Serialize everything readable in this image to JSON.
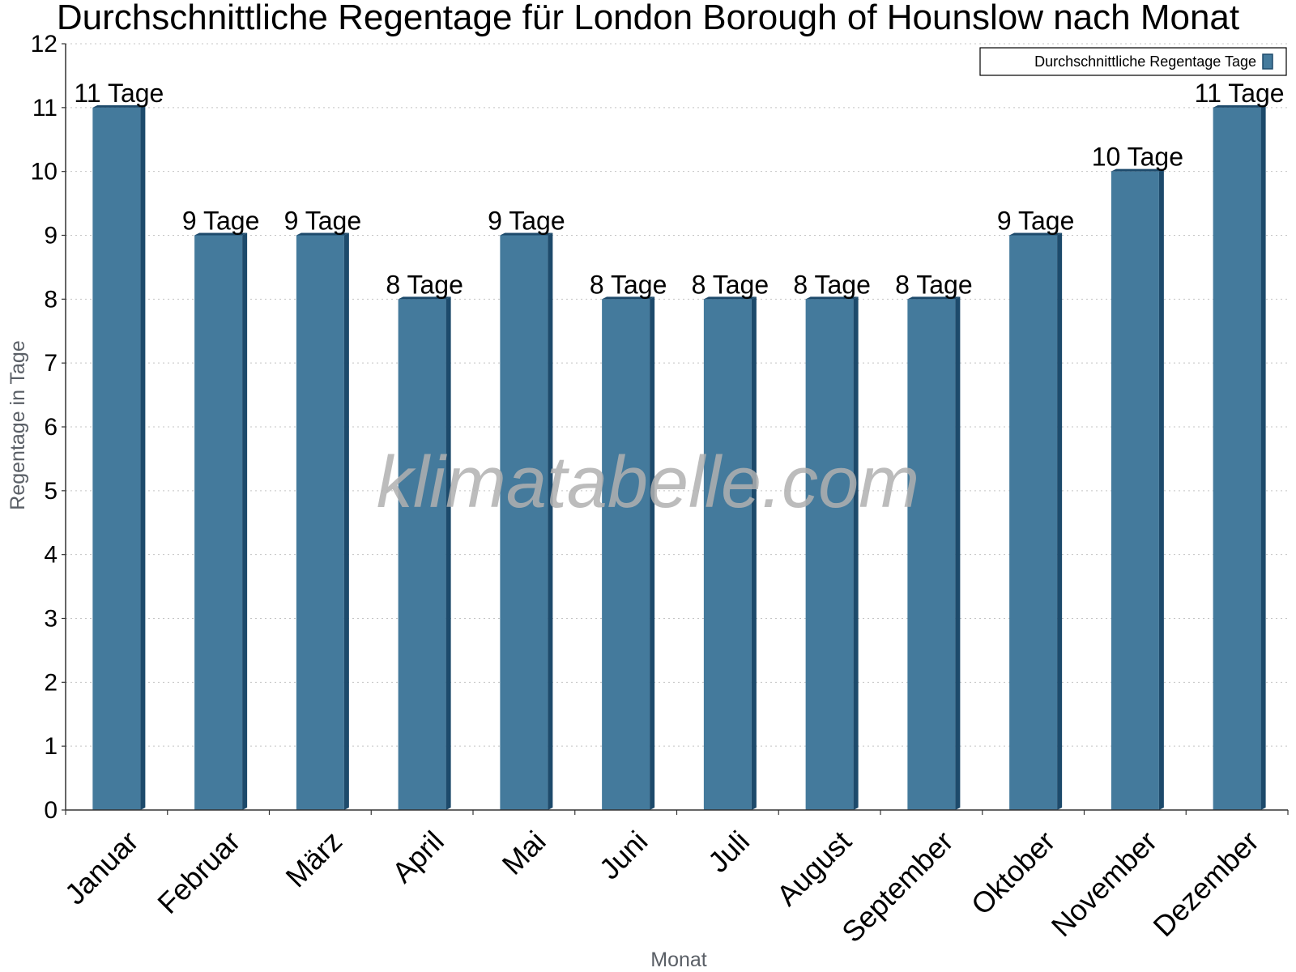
{
  "chart_data": {
    "type": "bar",
    "title": "Durchschnittliche Regentage für London Borough of Hounslow nach Monat",
    "xlabel": "Monat",
    "ylabel": "Regentage in Tage",
    "ylim": [
      0,
      12
    ],
    "yticks": [
      0,
      1,
      2,
      3,
      4,
      5,
      6,
      7,
      8,
      9,
      10,
      11,
      12
    ],
    "grid": true,
    "legend_position": "top-right",
    "categories": [
      "Januar",
      "Februar",
      "März",
      "April",
      "Mai",
      "Juni",
      "Juli",
      "August",
      "September",
      "Oktober",
      "November",
      "Dezember"
    ],
    "series": [
      {
        "name": "Durchschnittliche Regentage Tage",
        "values": [
          11,
          9,
          9,
          8,
          9,
          8,
          8,
          8,
          8,
          9,
          10,
          11
        ],
        "labels": [
          "11 Tage",
          "9 Tage",
          "9 Tage",
          "8 Tage",
          "9 Tage",
          "8 Tage",
          "8 Tage",
          "8 Tage",
          "8 Tage",
          "9 Tage",
          "10 Tage",
          "11 Tage"
        ],
        "color": "#447a9c",
        "side_color": "#1d4a6b"
      }
    ]
  },
  "watermark": "klimatabelle.com"
}
